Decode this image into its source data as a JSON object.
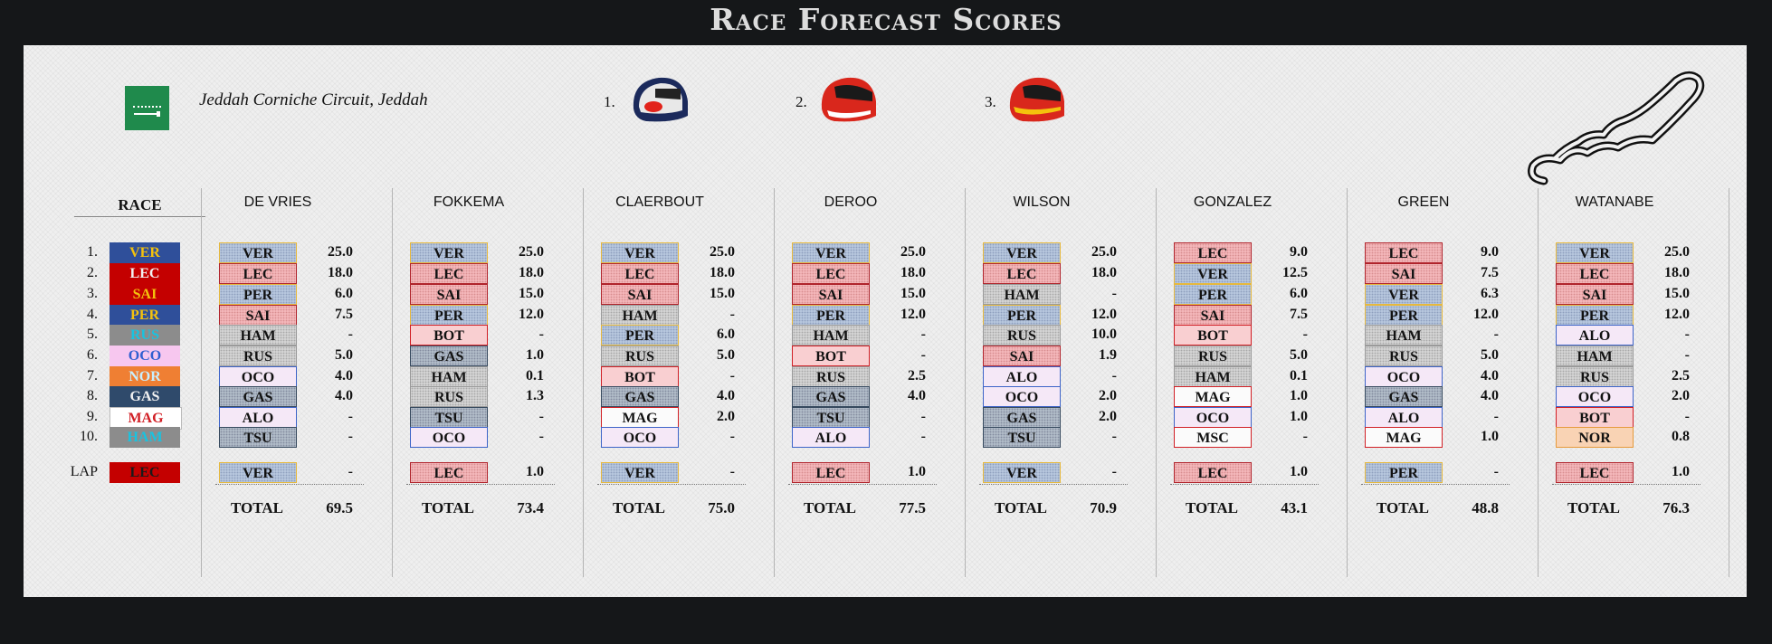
{
  "title": "Race Forecast Scores",
  "circuit": "Jeddah Corniche Circuit, Jeddah",
  "podium": [
    {
      "label": "1.",
      "primary": "#1b2a5c",
      "secondary": "#e8e8e8",
      "accent": "#e2231a"
    },
    {
      "label": "2.",
      "primary": "#d9271c",
      "secondary": "#ffffff",
      "accent": "#1a1a1a"
    },
    {
      "label": "3.",
      "primary": "#d9271c",
      "secondary": "#f4c20d",
      "accent": "#1a1a1a"
    }
  ],
  "race": {
    "header": "RACE",
    "lap_label": "LAP",
    "positions": [
      "1.",
      "2.",
      "3.",
      "4.",
      "5.",
      "6.",
      "7.",
      "8.",
      "9.",
      "10."
    ],
    "drivers": [
      {
        "code": "VER",
        "bg": "#2f4f9a",
        "fg": "#f4c20d"
      },
      {
        "code": "LEC",
        "bg": "#c40000",
        "fg": "#f2f2f2"
      },
      {
        "code": "SAI",
        "bg": "#c40000",
        "fg": "#f4c20d"
      },
      {
        "code": "PER",
        "bg": "#2f4f9a",
        "fg": "#f4c20d"
      },
      {
        "code": "RUS",
        "bg": "#8c8c8c",
        "fg": "#19c3e0"
      },
      {
        "code": "OCO",
        "bg": "#f7c7ef",
        "fg": "#2f5fd0"
      },
      {
        "code": "NOR",
        "bg": "#ef7f33",
        "fg": "#c7efff"
      },
      {
        "code": "GAS",
        "bg": "#2f4a6b",
        "fg": "#f2f2f2"
      },
      {
        "code": "MAG",
        "bg": "#ffffff",
        "fg": "#d11f25"
      },
      {
        "code": "HAM",
        "bg": "#8c8c8c",
        "fg": "#19c3e0"
      }
    ],
    "lap": {
      "code": "LEC",
      "bg": "#c40000",
      "fg": "#1a1a1a"
    }
  },
  "total_label": "TOTAL",
  "players": [
    {
      "name": "DE VRIES",
      "picks": [
        [
          "VER",
          "blue",
          "25.0"
        ],
        [
          "LEC",
          "red",
          "18.0"
        ],
        [
          "PER",
          "blue",
          "6.0"
        ],
        [
          "SAI",
          "red",
          "7.5"
        ],
        [
          "HAM",
          "grey",
          "-"
        ],
        [
          "RUS",
          "grey",
          "5.0"
        ],
        [
          "OCO",
          "lav",
          "4.0"
        ],
        [
          "GAS",
          "slate",
          "4.0"
        ],
        [
          "ALO",
          "lav",
          "-"
        ],
        [
          "TSU",
          "slate",
          "-"
        ]
      ],
      "lap": [
        "VER",
        "blue",
        "-"
      ],
      "total": "69.5"
    },
    {
      "name": "FOKKEMA",
      "picks": [
        [
          "VER",
          "blue",
          "25.0"
        ],
        [
          "LEC",
          "red",
          "18.0"
        ],
        [
          "SAI",
          "red",
          "15.0"
        ],
        [
          "PER",
          "blue",
          "12.0"
        ],
        [
          "BOT",
          "ltred",
          "-"
        ],
        [
          "GAS",
          "slate",
          "1.0"
        ],
        [
          "HAM",
          "grey",
          "0.1"
        ],
        [
          "RUS",
          "grey",
          "1.3"
        ],
        [
          "TSU",
          "slate",
          "-"
        ],
        [
          "OCO",
          "lav",
          "-"
        ]
      ],
      "lap": [
        "LEC",
        "red",
        "1.0"
      ],
      "total": "73.4"
    },
    {
      "name": "CLAERBOUT",
      "picks": [
        [
          "VER",
          "blue",
          "25.0"
        ],
        [
          "LEC",
          "red",
          "18.0"
        ],
        [
          "SAI",
          "red",
          "15.0"
        ],
        [
          "HAM",
          "grey",
          "-"
        ],
        [
          "PER",
          "blue",
          "6.0"
        ],
        [
          "RUS",
          "grey",
          "5.0"
        ],
        [
          "BOT",
          "ltred",
          "-"
        ],
        [
          "GAS",
          "slate",
          "4.0"
        ],
        [
          "MAG",
          "white",
          "2.0"
        ],
        [
          "OCO",
          "lav",
          "-"
        ]
      ],
      "lap": [
        "VER",
        "blue",
        "-"
      ],
      "total": "75.0"
    },
    {
      "name": "DEROO",
      "picks": [
        [
          "VER",
          "blue",
          "25.0"
        ],
        [
          "LEC",
          "red",
          "18.0"
        ],
        [
          "SAI",
          "red",
          "15.0"
        ],
        [
          "PER",
          "blue",
          "12.0"
        ],
        [
          "HAM",
          "grey",
          "-"
        ],
        [
          "BOT",
          "ltred",
          "-"
        ],
        [
          "RUS",
          "grey",
          "2.5"
        ],
        [
          "GAS",
          "slate",
          "4.0"
        ],
        [
          "TSU",
          "slate",
          "-"
        ],
        [
          "ALO",
          "lav",
          "-"
        ]
      ],
      "lap": [
        "LEC",
        "red",
        "1.0"
      ],
      "total": "77.5"
    },
    {
      "name": "WILSON",
      "picks": [
        [
          "VER",
          "blue",
          "25.0"
        ],
        [
          "LEC",
          "red",
          "18.0"
        ],
        [
          "HAM",
          "grey",
          "-"
        ],
        [
          "PER",
          "blue",
          "12.0"
        ],
        [
          "RUS",
          "grey",
          "10.0"
        ],
        [
          "SAI",
          "red",
          "1.9"
        ],
        [
          "ALO",
          "lav",
          "-"
        ],
        [
          "OCO",
          "lav",
          "2.0"
        ],
        [
          "GAS",
          "slate",
          "2.0"
        ],
        [
          "TSU",
          "slate",
          "-"
        ]
      ],
      "lap": [
        "VER",
        "blue",
        "-"
      ],
      "total": "70.9"
    },
    {
      "name": "GONZALEZ",
      "picks": [
        [
          "LEC",
          "red",
          "9.0"
        ],
        [
          "VER",
          "blue",
          "12.5"
        ],
        [
          "PER",
          "blue",
          "6.0"
        ],
        [
          "SAI",
          "red",
          "7.5"
        ],
        [
          "BOT",
          "ltred",
          "-"
        ],
        [
          "RUS",
          "grey",
          "5.0"
        ],
        [
          "HAM",
          "grey",
          "0.1"
        ],
        [
          "MAG",
          "white",
          "1.0"
        ],
        [
          "OCO",
          "lav",
          "1.0"
        ],
        [
          "MSC",
          "white",
          "-"
        ]
      ],
      "lap": [
        "LEC",
        "red",
        "1.0"
      ],
      "total": "43.1"
    },
    {
      "name": "GREEN",
      "picks": [
        [
          "LEC",
          "red",
          "9.0"
        ],
        [
          "SAI",
          "red",
          "7.5"
        ],
        [
          "VER",
          "blue",
          "6.3"
        ],
        [
          "PER",
          "blue",
          "12.0"
        ],
        [
          "HAM",
          "grey",
          "-"
        ],
        [
          "RUS",
          "grey",
          "5.0"
        ],
        [
          "OCO",
          "lav",
          "4.0"
        ],
        [
          "GAS",
          "slate",
          "4.0"
        ],
        [
          "ALO",
          "lav",
          "-"
        ],
        [
          "MAG",
          "white",
          "1.0"
        ]
      ],
      "lap": [
        "PER",
        "blue",
        "-"
      ],
      "total": "48.8"
    },
    {
      "name": "WATANABE",
      "picks": [
        [
          "VER",
          "blue",
          "25.0"
        ],
        [
          "LEC",
          "red",
          "18.0"
        ],
        [
          "SAI",
          "red",
          "15.0"
        ],
        [
          "PER",
          "blue",
          "12.0"
        ],
        [
          "ALO",
          "lav",
          "-"
        ],
        [
          "HAM",
          "grey",
          "-"
        ],
        [
          "RUS",
          "grey",
          "2.5"
        ],
        [
          "OCO",
          "lav",
          "2.0"
        ],
        [
          "BOT",
          "ltred",
          "-"
        ],
        [
          "NOR",
          "peach",
          "0.8"
        ]
      ],
      "lap": [
        "LEC",
        "red",
        "1.0"
      ],
      "total": "76.3"
    }
  ]
}
